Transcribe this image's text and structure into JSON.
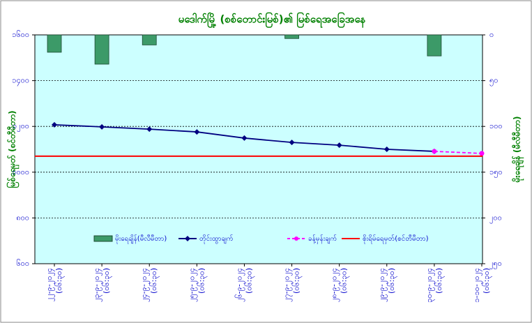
{
  "chart_data": {
    "type": "combo",
    "title": "မဒေါက်မြို့ (စစ်တောင်းမြစ်)၏ မြစ်ရေအခြေအနေ",
    "y_label": "မြစ်ရေမှတ် (စင်တီမီတာ)",
    "y2_label": "မိုးရေချိန် (မီလီမီတာ)",
    "categories": [
      "၂၂-၉-၂၀၂၄ (၀၆:၃၀)",
      "၂၃-၉-၂၀၂၄ (၀၆:၃၀)",
      "၂၄-၉-၂၀၂၄ (၀၆:၃၀)",
      "၂၅-၉-၂၀၂၄ (၀၆:၃၀)",
      "၂၆-၉-၂၀၂၄ (၀၆:၃၀)",
      "၂၇-၉-၂၀၂၄ (၀၆:၃၀)",
      "၂၈-၉-၂၀၂၄ (၀၆:၃၀)",
      "၂၉-၉-၂၀၂၄ (၀၆:၃၀)",
      "၃၀-၉-၂၀၂၄ (၀၆:၃၀)",
      "၁-၁၀-၂၀၂၄ (၀၆:၃၀)"
    ],
    "ylim": [
      600,
      1600
    ],
    "yticks": [
      {
        "value": 600,
        "label": "၆၀၀"
      },
      {
        "value": 800,
        "label": "၈၀၀"
      },
      {
        "value": 1000,
        "label": "၁၀၀၀"
      },
      {
        "value": 1200,
        "label": "၁၂၀၀"
      },
      {
        "value": 1400,
        "label": "၁၄၀၀"
      },
      {
        "value": 1600,
        "label": "၁၆၀၀"
      }
    ],
    "y2lim": [
      0,
      250
    ],
    "y2_inverted": true,
    "y2ticks": [
      {
        "value": 0,
        "label": "၀"
      },
      {
        "value": 50,
        "label": "၅၀"
      },
      {
        "value": 100,
        "label": "၁၀၀"
      },
      {
        "value": 150,
        "label": "၁၅၀"
      },
      {
        "value": 200,
        "label": "၂၀၀"
      },
      {
        "value": 250,
        "label": "၂၅၀"
      }
    ],
    "grid": true,
    "series": [
      {
        "name": "မိုးရေချိန်(မီလီမီတာ)",
        "type": "bar",
        "axis": "y2",
        "color": "#3c9a68",
        "values": [
          19,
          32,
          11,
          0,
          0,
          4,
          0,
          0,
          23,
          0
        ]
      },
      {
        "name": "တိုင်းထွာချက်",
        "type": "line",
        "color": "#000080",
        "marker": "diamond",
        "values": [
          1207,
          1198,
          1188,
          1176,
          1149,
          1130,
          1118,
          1100,
          1091,
          null
        ]
      },
      {
        "name": "ခန့်မှန်းချက်",
        "type": "line",
        "color": "#ff00ff",
        "dashed": true,
        "marker": "circle",
        "values": [
          null,
          null,
          null,
          null,
          null,
          null,
          null,
          null,
          1091,
          1082
        ]
      },
      {
        "name": "စိုးရိမ်ရေမှတ်(စင်တီမီတာ)",
        "type": "hline",
        "color": "#ff0000",
        "value": 1070
      }
    ]
  }
}
